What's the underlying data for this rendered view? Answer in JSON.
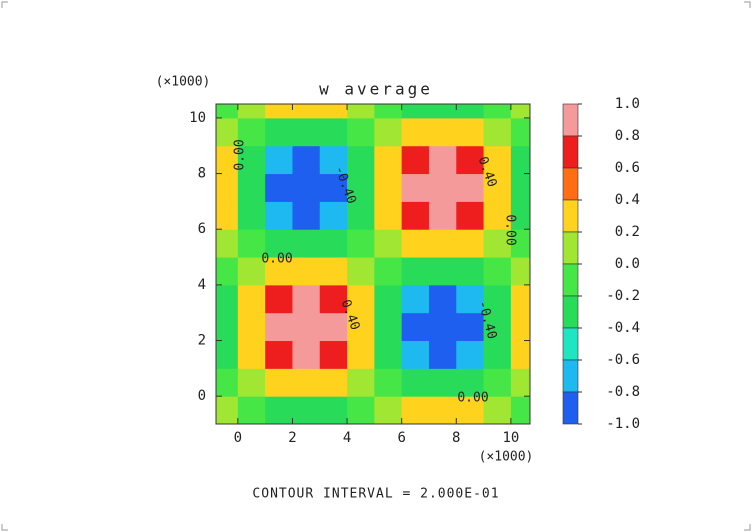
{
  "chart_data": {
    "type": "contour",
    "title": "w average",
    "x_unit": "(×1000)",
    "y_unit": "(×1000)",
    "footer": "CONTOUR INTERVAL = 2.000E-01",
    "x": [
      -0.5,
      0.5,
      1.5,
      2.5,
      3.5,
      4.5,
      5.5,
      6.5,
      7.5,
      8.5,
      9.5,
      10.5
    ],
    "y": [
      -0.5,
      0.5,
      1.5,
      2.5,
      3.5,
      4.5,
      5.5,
      6.5,
      7.5,
      8.5,
      9.5,
      10.5
    ],
    "z": [
      [
        0.1,
        -0.1,
        -0.25,
        -0.31,
        -0.25,
        -0.1,
        0.1,
        0.25,
        0.31,
        0.25,
        0.1,
        -0.1
      ],
      [
        -0.1,
        0.1,
        0.25,
        0.31,
        0.25,
        0.1,
        -0.1,
        -0.25,
        -0.31,
        -0.25,
        -0.1,
        0.1
      ],
      [
        -0.25,
        0.25,
        0.66,
        0.81,
        0.66,
        0.25,
        -0.25,
        -0.66,
        -0.81,
        -0.66,
        -0.25,
        0.25
      ],
      [
        -0.31,
        0.31,
        0.81,
        1,
        0.81,
        0.31,
        -0.31,
        -0.81,
        -1,
        -0.81,
        -0.31,
        0.31
      ],
      [
        -0.25,
        0.25,
        0.66,
        0.81,
        0.66,
        0.25,
        -0.25,
        -0.66,
        -0.81,
        -0.66,
        -0.25,
        0.25
      ],
      [
        -0.1,
        0.1,
        0.25,
        0.31,
        0.25,
        0.1,
        -0.1,
        -0.25,
        -0.31,
        -0.25,
        -0.1,
        0.1
      ],
      [
        0.1,
        -0.1,
        -0.25,
        -0.31,
        -0.25,
        -0.1,
        0.1,
        0.25,
        0.31,
        0.25,
        0.1,
        -0.1
      ],
      [
        0.25,
        -0.25,
        -0.66,
        -0.81,
        -0.66,
        -0.25,
        0.25,
        0.66,
        0.81,
        0.66,
        0.25,
        -0.25
      ],
      [
        0.31,
        -0.31,
        -0.81,
        -1,
        -0.81,
        -0.31,
        0.31,
        0.81,
        1,
        0.81,
        0.31,
        -0.31
      ],
      [
        0.25,
        -0.25,
        -0.66,
        -0.81,
        -0.66,
        -0.25,
        0.25,
        0.66,
        0.81,
        0.66,
        0.25,
        -0.25
      ],
      [
        0.1,
        -0.1,
        -0.25,
        -0.31,
        -0.25,
        -0.1,
        0.1,
        0.25,
        0.31,
        0.25,
        0.1,
        -0.1
      ],
      [
        -0.1,
        0.1,
        0.25,
        0.31,
        0.25,
        0.1,
        -0.1,
        -0.25,
        -0.31,
        -0.25,
        -0.1,
        0.1
      ]
    ],
    "xlim": [
      -0.8,
      10.7
    ],
    "ylim": [
      -1,
      10.5
    ],
    "xticks": [
      0,
      2,
      4,
      6,
      8,
      10
    ],
    "yticks": [
      0,
      2,
      4,
      6,
      8,
      10
    ],
    "levels": [
      {
        "value": 1,
        "label": "1.0"
      },
      {
        "value": 0.8,
        "label": "0.8"
      },
      {
        "value": 0.6,
        "label": "0.6"
      },
      {
        "value": 0.4,
        "label": "0.4"
      },
      {
        "value": 0.2,
        "label": "0.2"
      },
      {
        "value": 0,
        "label": "0.0"
      },
      {
        "value": -0.2,
        "label": "-0.2"
      },
      {
        "value": -0.4,
        "label": "-0.4"
      },
      {
        "value": -0.6,
        "label": "-0.6"
      },
      {
        "value": -0.8,
        "label": "-0.8"
      },
      {
        "value": -1,
        "label": "-1.0"
      }
    ],
    "colors": [
      "#f59a9a",
      "#ee1e1e",
      "#ff6e14",
      "#ffd21e",
      "#a0e632",
      "#46e646",
      "#28dc5a",
      "#1ee6c3",
      "#1eb9f0",
      "#1e5ff0"
    ],
    "annotations": [
      "0.00",
      "-0.40",
      "0.40",
      "0.00",
      "0.00",
      "0.40",
      "-0.40",
      "0.00"
    ]
  }
}
